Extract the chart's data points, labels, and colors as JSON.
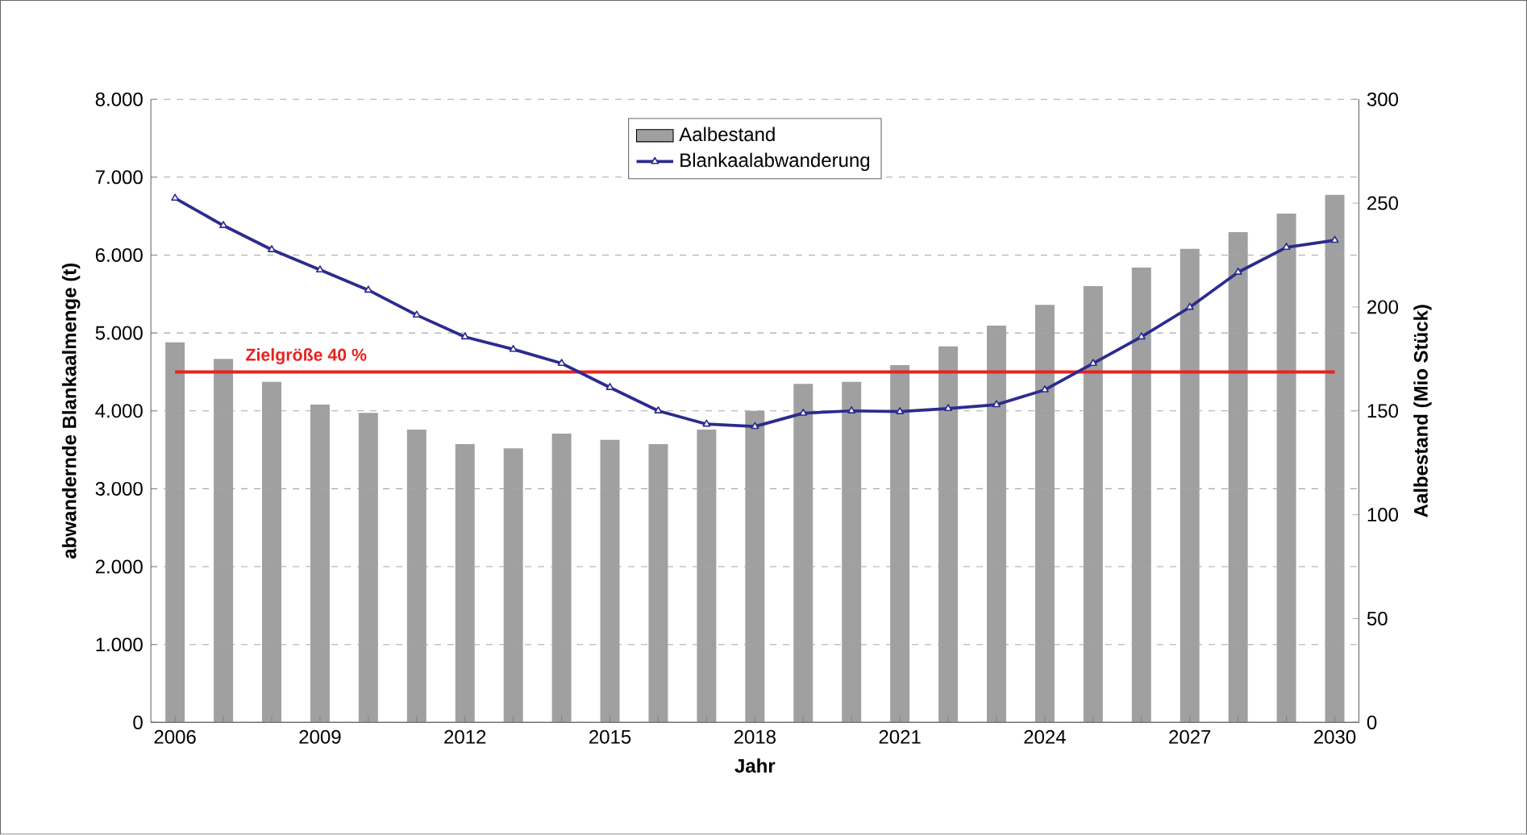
{
  "chart_data": {
    "type": "bar",
    "xlabel": "Jahr",
    "ylabel": "abwandernde Blankaalmenge (t)",
    "y2label": "Aalbestand (Mio Stück)",
    "categories": [
      "2006",
      null,
      null,
      "2009",
      null,
      null,
      "2012",
      null,
      null,
      "2015",
      null,
      null,
      "2018",
      null,
      null,
      "2021",
      null,
      null,
      "2024",
      null,
      null,
      "2027",
      null,
      null,
      "2030"
    ],
    "series": [
      {
        "name": "Aalbestand",
        "axis": "y2",
        "color": "#a0a0a0",
        "values": [
          183,
          175,
          164,
          153,
          149,
          141,
          134,
          132,
          139,
          136,
          134,
          141,
          150,
          163,
          164,
          172,
          181,
          191,
          201,
          210,
          219,
          228,
          236,
          245,
          254
        ]
      },
      {
        "name": "Blankaalabwanderung",
        "type": "line",
        "color": "#2b2b8f",
        "marker": "triangle",
        "line_style": "solid",
        "values": [
          6730,
          6380,
          6070,
          5810,
          5550,
          5230,
          4950,
          4790,
          4610,
          4300,
          4000,
          3830,
          3800,
          3970,
          4000,
          3990,
          4030,
          4080,
          4270,
          4610,
          4950,
          5330,
          5780,
          6100,
          6190
        ]
      }
    ],
    "ylim": [
      0,
      8000
    ],
    "yticks": [
      {
        "value": 0,
        "label": "0"
      },
      {
        "value": 1000,
        "label": "1.000"
      },
      {
        "value": 2000,
        "label": "2.000"
      },
      {
        "value": 3000,
        "label": "3.000"
      },
      {
        "value": 4000,
        "label": "4.000"
      },
      {
        "value": 5000,
        "label": "5.000"
      },
      {
        "value": 6000,
        "label": "6.000"
      },
      {
        "value": 7000,
        "label": "7.000"
      },
      {
        "value": 8000,
        "label": "8.000"
      }
    ],
    "y2lim": [
      0,
      300
    ],
    "y2ticks": [
      0,
      50,
      100,
      150,
      200,
      250,
      300
    ],
    "ref_lines": [
      {
        "axis": "y",
        "value": 4500,
        "label": "Zielgröße 40 %",
        "color": "#e8231f"
      }
    ],
    "grid": "y",
    "legend": "top"
  }
}
